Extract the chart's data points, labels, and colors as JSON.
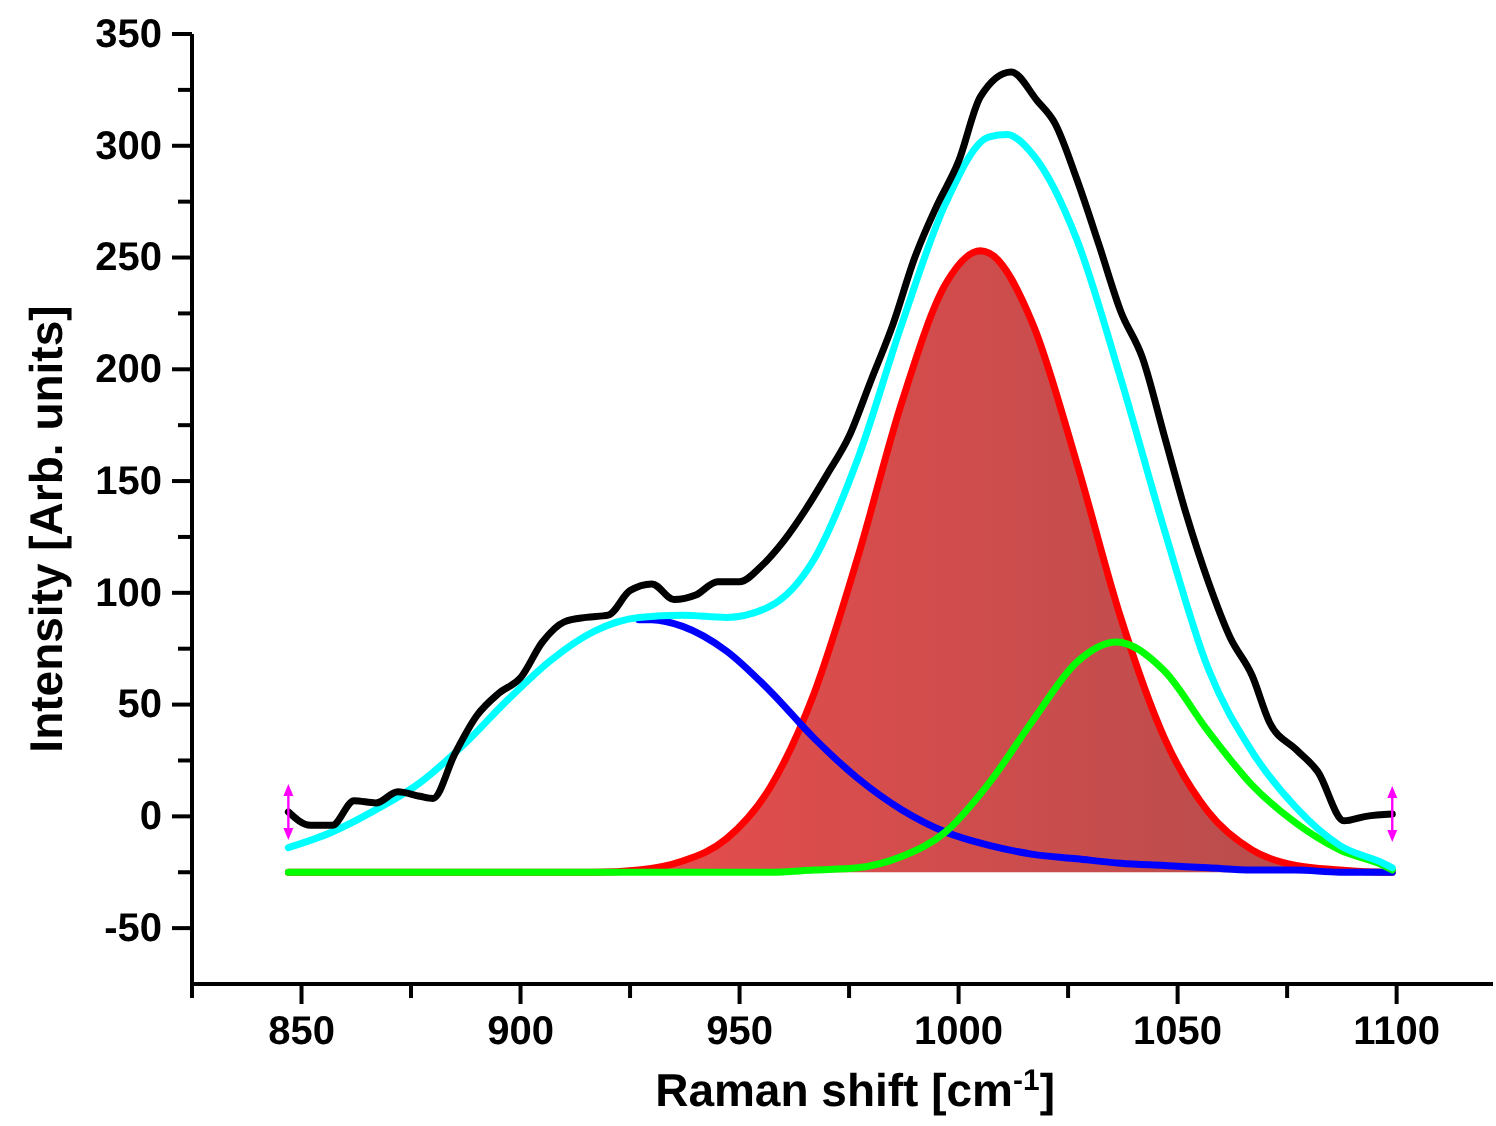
{
  "chart_data": {
    "type": "line",
    "xlabel": "Raman shift [cm$^{-1}$]",
    "ylabel": "Intensity [Arb. units]",
    "xlim": [
      825,
      1122
    ],
    "ylim": [
      -75,
      350
    ],
    "xticks": [
      {
        "value": 825,
        "label": null
      },
      850,
      {
        "value": 875,
        "label": null
      },
      900,
      {
        "value": 925,
        "label": null
      },
      950,
      {
        "value": 975,
        "label": null
      },
      1000,
      {
        "value": 1025,
        "label": null
      },
      1050,
      {
        "value": 1075,
        "label": null
      },
      1100
    ],
    "yticks": [
      -50,
      {
        "value": -25,
        "label": null
      },
      0,
      {
        "value": 25,
        "label": null
      },
      50,
      {
        "value": 75,
        "label": null
      },
      100,
      {
        "value": 125,
        "label": null
      },
      150,
      {
        "value": 175,
        "label": null
      },
      200,
      {
        "value": 225,
        "label": null
      },
      250,
      {
        "value": 275,
        "label": null
      },
      300,
      {
        "value": 325,
        "label": null
      },
      350
    ],
    "grid": false,
    "marker": "none",
    "line_style": "solid",
    "series": [
      {
        "type": "area",
        "color": "#ff0000",
        "x": [
          847,
          857,
          867,
          877,
          887,
          897,
          907,
          917,
          927,
          937,
          947,
          957,
          967,
          977,
          987,
          997,
          1005,
          1007,
          1017,
          1027,
          1037,
          1047,
          1057,
          1067,
          1077,
          1087,
          1097,
          1099
        ],
        "values": [
          -25,
          -25,
          -25,
          -25,
          -25,
          -25,
          -25,
          -25,
          -24,
          -20,
          -10,
          13,
          55,
          116,
          185,
          238,
          253,
          252,
          220,
          158,
          89,
          35,
          2,
          -15,
          -22,
          -24,
          -25,
          -25
        ]
      },
      {
        "color": "#0000ff",
        "x": [
          927,
          930,
          937,
          947,
          957,
          967,
          977,
          987,
          997,
          1007,
          1017,
          1027,
          1037,
          1047,
          1057,
          1067,
          1077,
          1087,
          1099
        ],
        "values": [
          88,
          88,
          85,
          74,
          56,
          35,
          17,
          3,
          -7,
          -13,
          -17,
          -19,
          -21,
          -22,
          -23,
          -24,
          -24,
          -25,
          -25
        ]
      },
      {
        "color": "#00ff00",
        "x": [
          847,
          857,
          867,
          877,
          887,
          897,
          907,
          917,
          927,
          937,
          947,
          957,
          967,
          977,
          987,
          997,
          1007,
          1017,
          1027,
          1036,
          1047,
          1057,
          1067,
          1077,
          1087,
          1097,
          1099
        ],
        "values": [
          -25,
          -25,
          -25,
          -25,
          -25,
          -25,
          -25,
          -25,
          -25,
          -25,
          -25,
          -25,
          -24,
          -23,
          -18,
          -7,
          15,
          43,
          69,
          78,
          65,
          38,
          14,
          -3,
          -15,
          -22,
          -24
        ]
      },
      {
        "color": "#00ffff",
        "x": [
          847,
          857,
          867,
          877,
          887,
          897,
          907,
          917,
          927,
          937,
          947,
          957,
          967,
          977,
          987,
          997,
          1007,
          1011,
          1017,
          1027,
          1037,
          1047,
          1057,
          1067,
          1077,
          1087,
          1097,
          1099
        ],
        "values": [
          -14,
          -7,
          3,
          15,
          32,
          52,
          70,
          83,
          89,
          90,
          89,
          94,
          115,
          160,
          220,
          274,
          304,
          305,
          296,
          258,
          196,
          128,
          66,
          29,
          4,
          -13,
          -21,
          -23
        ]
      },
      {
        "color": "#000000",
        "x": [
          847,
          852,
          857,
          862,
          867,
          872,
          877,
          880,
          885,
          890,
          895,
          900,
          905,
          910,
          915,
          920,
          925,
          930,
          935,
          940,
          945,
          950,
          955,
          960,
          965,
          970,
          975,
          980,
          985,
          990,
          995,
          1000,
          1005,
          1012,
          1018,
          1022,
          1027,
          1032,
          1037,
          1042,
          1047,
          1052,
          1057,
          1062,
          1067,
          1071,
          1077,
          1082,
          1088,
          1093,
          1099
        ],
        "values": [
          2,
          -4,
          -4,
          7,
          6,
          11,
          9,
          8,
          28,
          45,
          55,
          62,
          78,
          87,
          89,
          90,
          101,
          104,
          97,
          99,
          105,
          105,
          112,
          123,
          137,
          153,
          170,
          195,
          220,
          250,
          273,
          293,
          322,
          333,
          320,
          310,
          285,
          256,
          226,
          205,
          170,
          135,
          105,
          80,
          63,
          42,
          30,
          20,
          -2,
          0,
          1
        ]
      }
    ]
  }
}
